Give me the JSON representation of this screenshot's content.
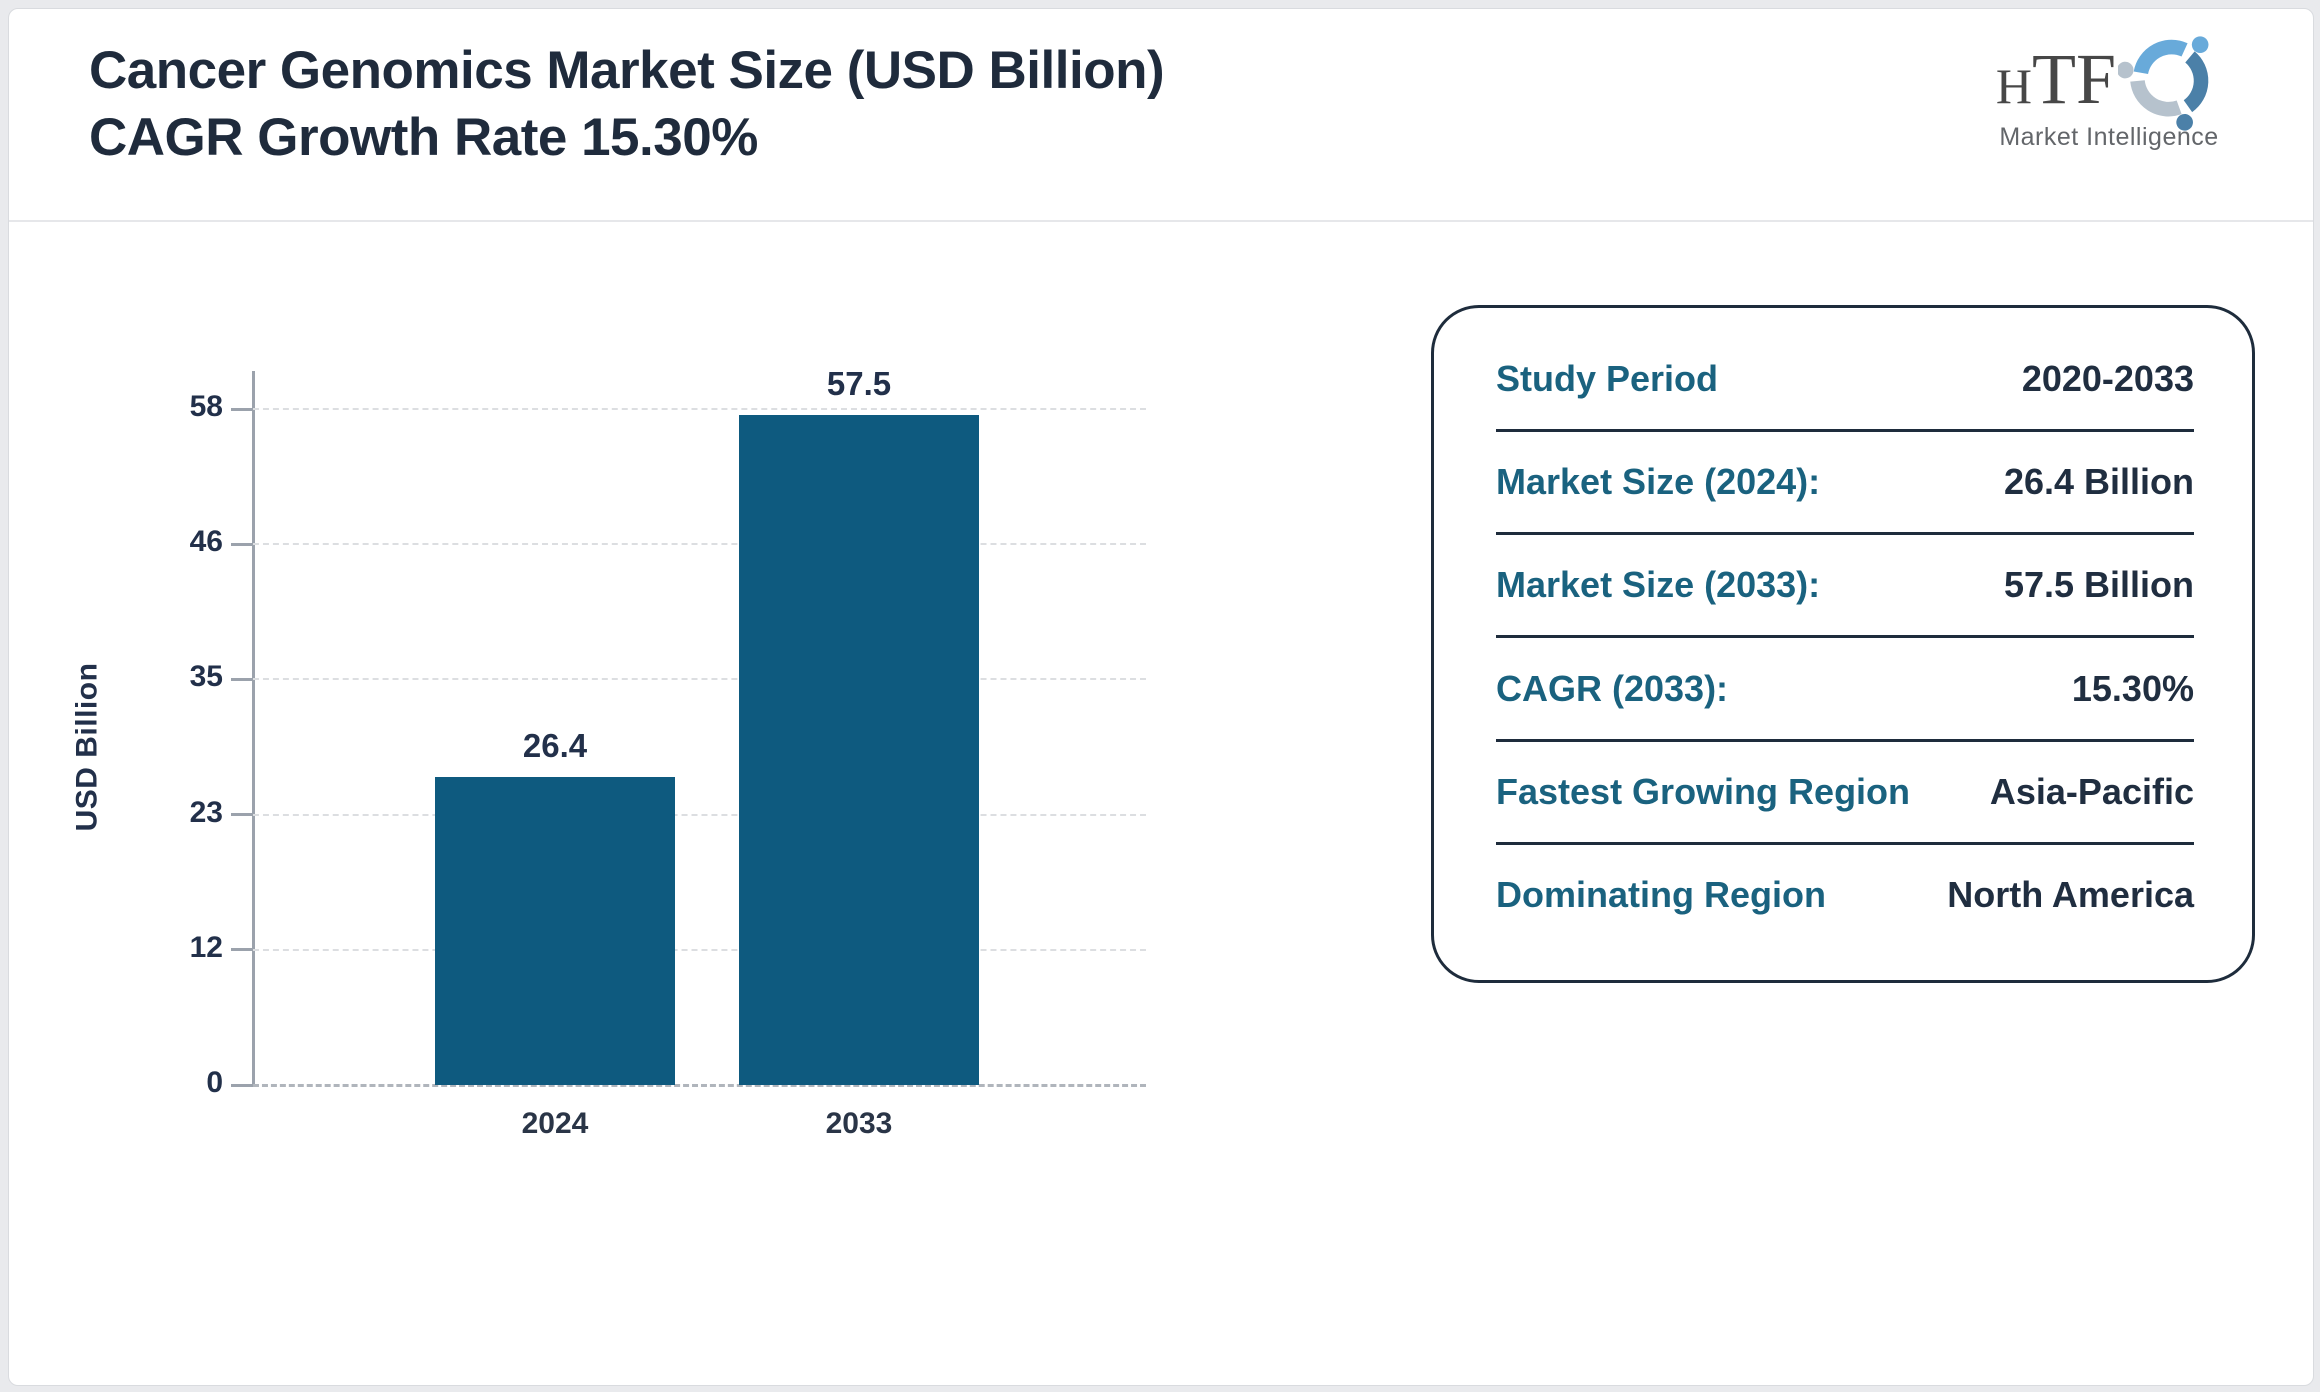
{
  "header": {
    "title_line1": "Cancer Genomics Market Size (USD Billion)",
    "title_line2": "CAGR Growth Rate 15.30%",
    "logo": {
      "text_h": "H",
      "text_tf": "TF",
      "subtext": "Market Intelligence",
      "swirl_colors": [
        "#68aada",
        "#4b80a8",
        "#b6c2cd"
      ]
    }
  },
  "chart_data": {
    "type": "bar",
    "title": "Cancer Genomics Market Size (USD Billion)",
    "categories": [
      "2024",
      "2033"
    ],
    "values": [
      26.4,
      57.5
    ],
    "value_labels": [
      "26.4",
      "57.5"
    ],
    "xlabel": "",
    "ylabel": "USD Billion",
    "ylim": [
      0,
      58
    ],
    "yticks": [
      0,
      12,
      23,
      35,
      46,
      58
    ],
    "grid": "horizontal-dashed",
    "legend": "none",
    "bar_color": "#0e5a7f"
  },
  "info_panel": {
    "rows": [
      {
        "label": "Study Period",
        "value": "2020-2033"
      },
      {
        "label": "Market Size (2024):",
        "value": "26.4 Billion"
      },
      {
        "label": "Market Size (2033):",
        "value": "57.5 Billion"
      },
      {
        "label": "CAGR (2033):",
        "value": "15.30%"
      },
      {
        "label": "Fastest Growing Region",
        "value": "Asia-Pacific"
      },
      {
        "label": "Dominating Region",
        "value": "North America"
      }
    ]
  },
  "colors": {
    "bar": "#0e5a7f",
    "label_teal": "#1a627f",
    "text_dark": "#1f2b3c",
    "panel_border": "#1e2c3c",
    "axis_gray": "#9ba2ac",
    "grid_gray": "#dcdee1",
    "page_bg": "#e9eaed"
  }
}
